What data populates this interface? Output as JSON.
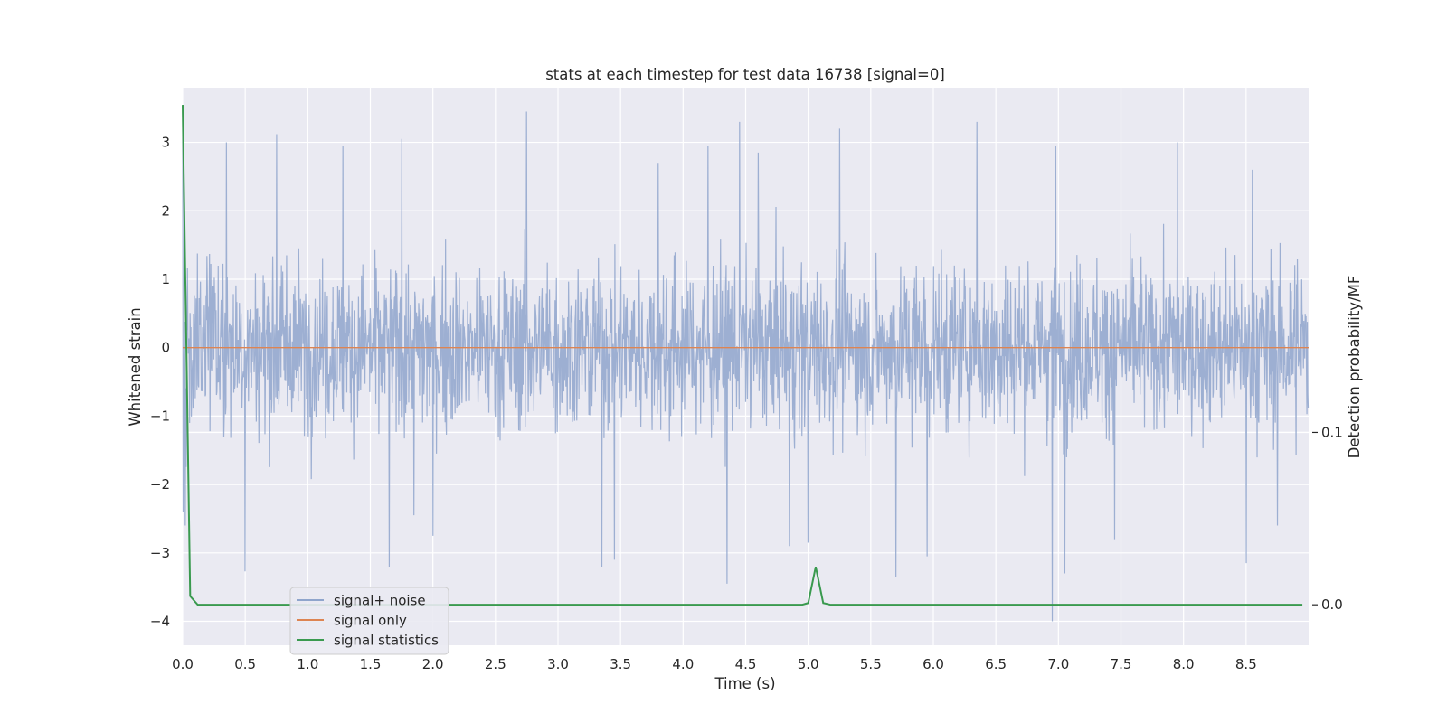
{
  "chart_data": {
    "type": "line",
    "title": "stats at each timestep for test data 16738 [signal=0]",
    "xlabel": "Time (s)",
    "ylabel": "Whitened strain",
    "y2label": "Detection probability/MF",
    "xlim": [
      0.0,
      9.0
    ],
    "ylim": [
      -4.35,
      3.8
    ],
    "y2lim": [
      -0.0235,
      0.3
    ],
    "xticks": [
      "0.0",
      "0.5",
      "1.0",
      "1.5",
      "2.0",
      "2.5",
      "3.0",
      "3.5",
      "4.0",
      "4.5",
      "5.0",
      "5.5",
      "6.0",
      "6.5",
      "7.0",
      "7.5",
      "8.0",
      "8.5"
    ],
    "yticks": [
      "3",
      "2",
      "1",
      "0",
      "−1",
      "−2",
      "−3",
      "−4"
    ],
    "y2ticks": [
      "0.1",
      "0.0"
    ],
    "grid": true,
    "legend_position": "lower-left",
    "colors": {
      "background": "#eaeaf2",
      "grid": "#ffffff",
      "noise": "#8fa5cc",
      "signal": "#dd8452",
      "stats": "#3a9a4f"
    },
    "series": [
      {
        "name": "signal+ noise",
        "axis": "left",
        "description_level": "noise band roughly between -2 and 2 with spikes",
        "spikes": [
          [
            0.0,
            3.45
          ],
          [
            0.005,
            -2.4
          ],
          [
            0.02,
            -2.6
          ],
          [
            0.35,
            3.0
          ],
          [
            0.5,
            -3.27
          ],
          [
            0.75,
            3.12
          ],
          [
            1.28,
            2.95
          ],
          [
            1.65,
            -3.2
          ],
          [
            1.75,
            3.05
          ],
          [
            1.85,
            -2.45
          ],
          [
            2.0,
            -2.75
          ],
          [
            2.75,
            3.45
          ],
          [
            3.35,
            -3.2
          ],
          [
            3.45,
            -3.1
          ],
          [
            3.8,
            2.7
          ],
          [
            4.2,
            2.95
          ],
          [
            4.35,
            -3.45
          ],
          [
            4.45,
            3.3
          ],
          [
            4.6,
            2.85
          ],
          [
            4.85,
            -2.9
          ],
          [
            5.0,
            -2.85
          ],
          [
            5.25,
            3.2
          ],
          [
            5.7,
            -3.35
          ],
          [
            5.95,
            -3.05
          ],
          [
            6.35,
            3.3
          ],
          [
            6.95,
            -4.0
          ],
          [
            6.98,
            2.95
          ],
          [
            7.05,
            -3.3
          ],
          [
            7.45,
            -2.8
          ],
          [
            7.95,
            3.0
          ],
          [
            8.5,
            -3.15
          ],
          [
            8.55,
            2.6
          ],
          [
            8.75,
            -2.6
          ]
        ]
      },
      {
        "name": "signal only",
        "axis": "left",
        "x": [
          0.0,
          9.0
        ],
        "y": [
          0.0,
          0.0
        ]
      },
      {
        "name": "signal statistics",
        "axis": "right",
        "x": [
          0.0,
          0.06,
          0.12,
          4.95,
          5.0,
          5.06,
          5.12,
          5.18,
          8.95
        ],
        "y": [
          0.29,
          0.005,
          0.0,
          0.0,
          0.001,
          0.022,
          0.001,
          0.0,
          0.0
        ]
      }
    ]
  }
}
